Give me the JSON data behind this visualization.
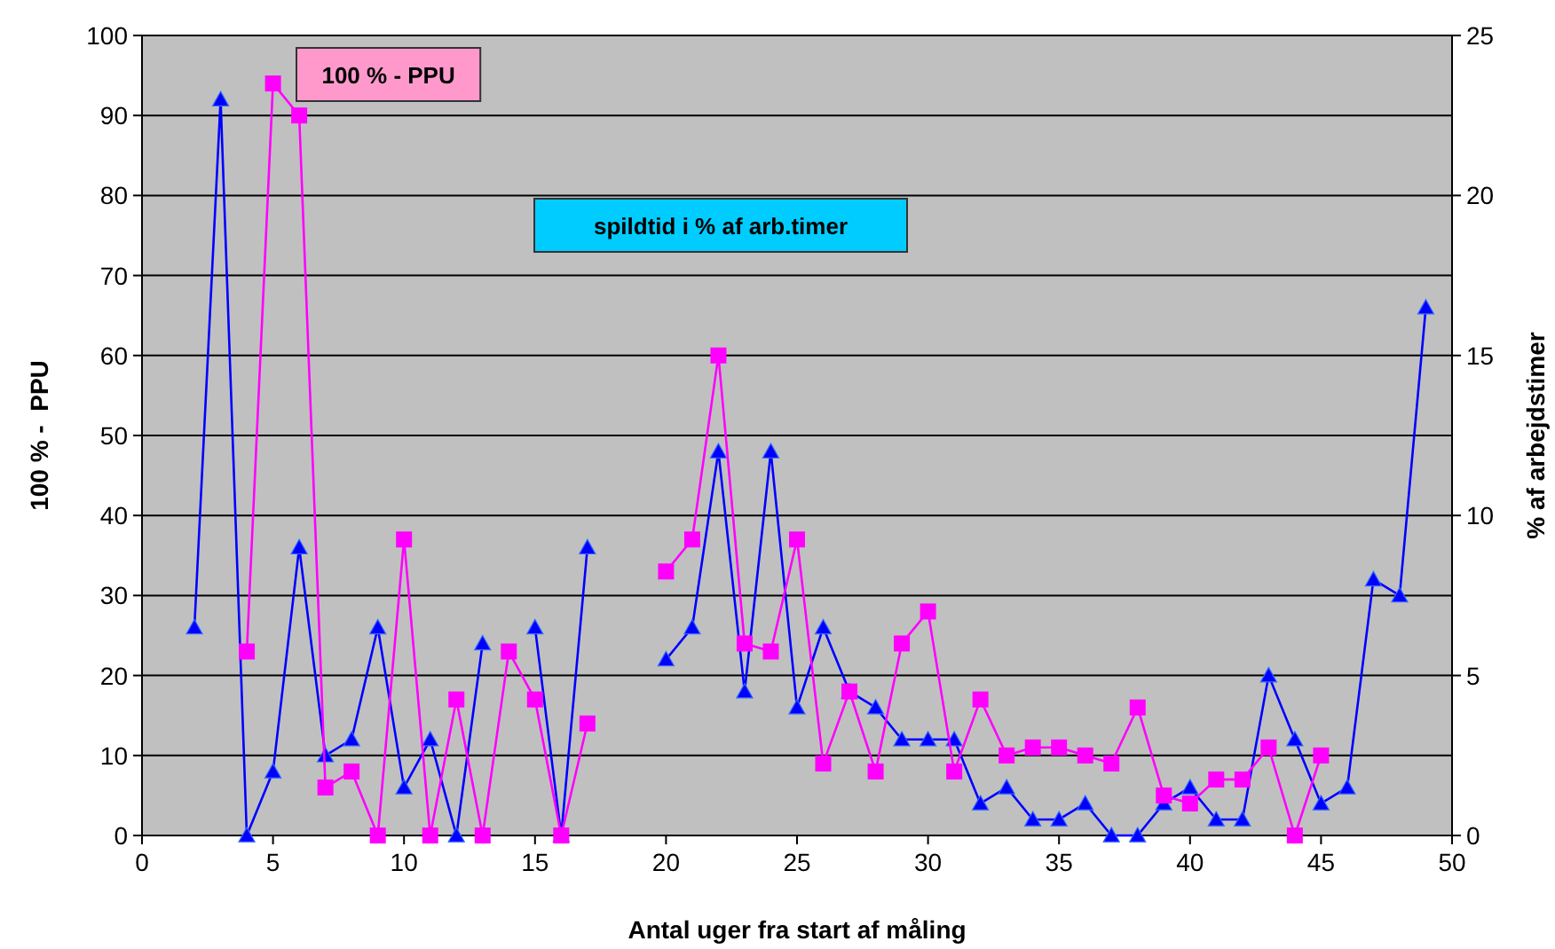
{
  "chart_data": {
    "type": "line",
    "xlabel": "Antal uger fra start af måling",
    "ylabel": "100 % -  PPU",
    "y2label": "% af arbejdstimer",
    "annotations": [
      "100 % - PPU",
      "spildtid i % af arb.timer"
    ],
    "x": [
      2,
      3,
      4,
      5,
      6,
      7,
      8,
      9,
      10,
      11,
      12,
      13,
      14,
      15,
      16,
      17,
      18,
      19,
      20,
      21,
      22,
      23,
      24,
      25,
      26,
      27,
      28,
      29,
      30,
      31,
      32,
      33,
      34,
      35,
      36,
      37,
      38,
      39,
      40,
      41,
      42,
      43,
      44,
      45,
      46,
      47,
      48,
      49
    ],
    "series": [
      {
        "color": "#0000ff",
        "axis": "y2",
        "marker": "triangle",
        "values": [
          6.5,
          23,
          0,
          2,
          9,
          2.5,
          3,
          6.5,
          1.5,
          3,
          0,
          6,
          null,
          6.5,
          0,
          9,
          null,
          null,
          5.5,
          6.5,
          12,
          4.5,
          12,
          4,
          6.5,
          4.5,
          4,
          3,
          3,
          3,
          1,
          1.5,
          0.5,
          0.5,
          1,
          0,
          0,
          1,
          1.5,
          0.5,
          0.5,
          5,
          3,
          1,
          1.5,
          8,
          7.5,
          16.5
        ]
      },
      {
        "color": "#ff00ff",
        "marker": "square",
        "values": [
          null,
          null,
          23,
          94,
          90,
          6,
          8,
          0,
          37,
          0,
          17,
          0,
          23,
          17,
          0,
          14,
          null,
          null,
          33,
          37,
          60,
          24,
          23,
          37,
          9,
          18,
          8,
          24,
          28,
          8,
          17,
          10,
          11,
          11,
          10,
          9,
          16,
          5,
          4,
          7,
          7,
          11,
          0,
          10,
          null,
          null,
          null,
          null
        ]
      }
    ],
    "xlim": [
      0,
      50
    ],
    "xticks": [
      0,
      5,
      10,
      15,
      20,
      25,
      30,
      35,
      40,
      45,
      50
    ],
    "ylim": [
      0,
      100
    ],
    "yticks": [
      0,
      10,
      20,
      30,
      40,
      50,
      60,
      70,
      80,
      90,
      100
    ],
    "y2lim": [
      0,
      25
    ],
    "y2ticks": [
      0,
      5,
      10,
      15,
      20,
      25
    ],
    "grid": "y"
  }
}
